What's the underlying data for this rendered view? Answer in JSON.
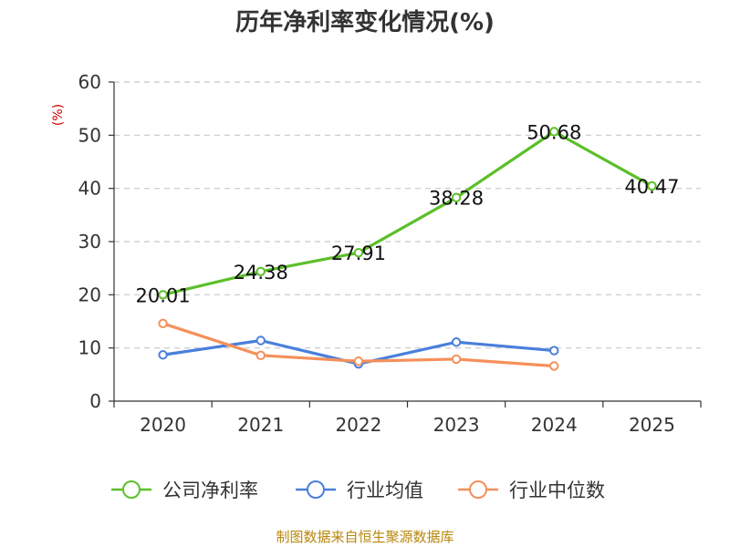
{
  "chart_data": {
    "type": "line",
    "title": "历年净利率变化情况(%)",
    "unit_label": "(%)",
    "categories": [
      "2020",
      "2021",
      "2022",
      "2023",
      "2024",
      "2025"
    ],
    "ylim": [
      0,
      60
    ],
    "yticks": [
      0,
      10,
      20,
      30,
      40,
      50,
      60
    ],
    "grid": true,
    "legend_position": "bottom",
    "series": [
      {
        "name": "公司净利率",
        "color": "#5cbf2a",
        "values": [
          20.01,
          24.38,
          27.91,
          38.28,
          50.68,
          40.47
        ],
        "labels": [
          "20.01",
          "24.38",
          "27.91",
          "38.28",
          "50.68",
          "40.47"
        ],
        "show_labels": true
      },
      {
        "name": "行业均值",
        "color": "#4a7fdc",
        "values": [
          8.7,
          11.4,
          7.0,
          11.1,
          9.5,
          null
        ],
        "show_labels": false
      },
      {
        "name": "行业中位数",
        "color": "#f5905a",
        "values": [
          14.6,
          8.6,
          7.5,
          7.9,
          6.6,
          null
        ],
        "show_labels": false
      }
    ]
  },
  "source": "制图数据来自恒生聚源数据库"
}
